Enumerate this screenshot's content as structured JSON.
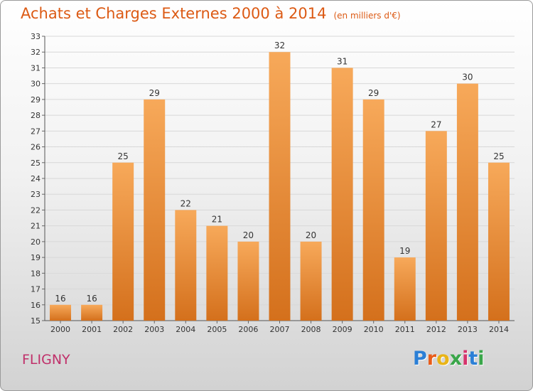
{
  "header": {
    "title": "Achats et Charges Externes 2000 à 2014",
    "unit": "(en milliers d'€)"
  },
  "footer": {
    "town": "FLIGNY"
  },
  "brand": {
    "letters": [
      "P",
      "r",
      "o",
      "x",
      "i",
      "t",
      "i"
    ],
    "colors": [
      "#2b7fd6",
      "#e85c1a",
      "#e9b417",
      "#3aa64a",
      "#d6336c",
      "#2b7fd6",
      "#3aa64a"
    ]
  },
  "chart_data": {
    "type": "bar",
    "categories": [
      "2000",
      "2001",
      "2002",
      "2003",
      "2004",
      "2005",
      "2006",
      "2007",
      "2008",
      "2009",
      "2010",
      "2011",
      "2012",
      "2013",
      "2014"
    ],
    "values": [
      16,
      16,
      25,
      29,
      22,
      21,
      20,
      32,
      20,
      31,
      29,
      19,
      27,
      30,
      25
    ],
    "title": "Achats et Charges Externes 2000 à 2014",
    "ylim": [
      15,
      33
    ],
    "yticks": [
      15,
      16,
      17,
      18,
      19,
      20,
      21,
      22,
      23,
      24,
      25,
      26,
      27,
      28,
      29,
      30,
      31,
      32,
      33
    ],
    "grid": true,
    "bar_color_top": "#f7a95a",
    "bar_color_bottom": "#d4701c"
  }
}
